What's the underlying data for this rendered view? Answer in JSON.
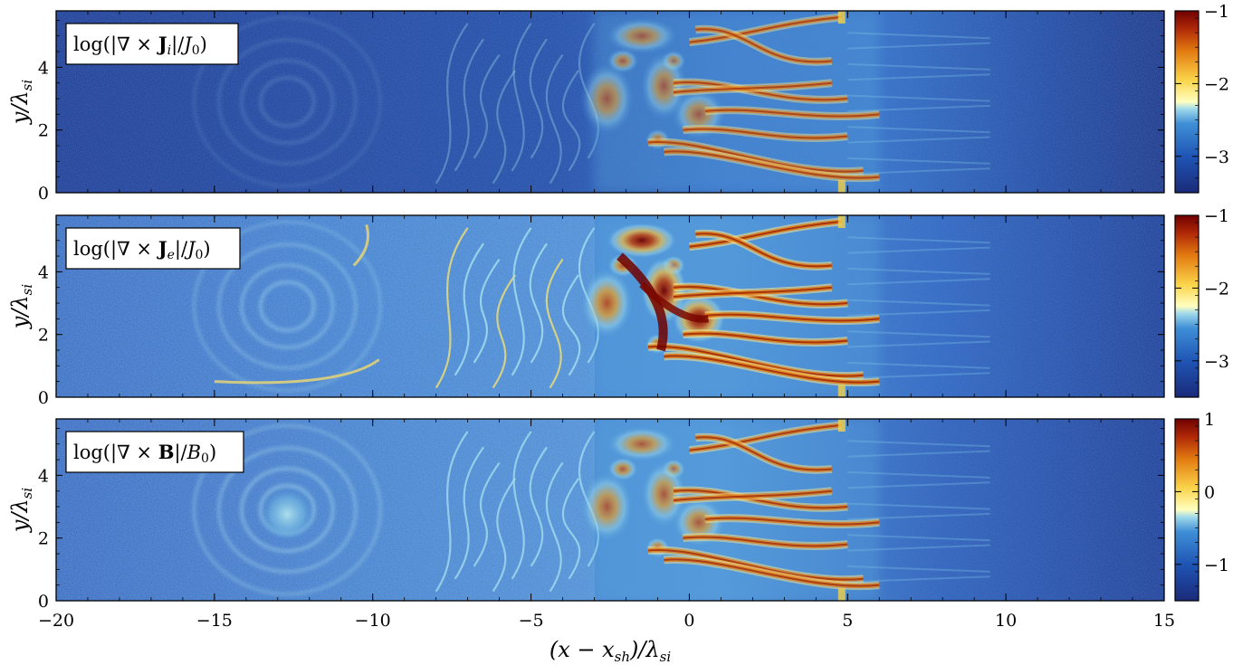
{
  "chart_data": {
    "type": "heatmap",
    "xlabel": "(x − x_sh)/λ_si",
    "ylabel": "y/λ_si",
    "xlim": [
      -20,
      15
    ],
    "ylim": [
      0,
      5.8
    ],
    "x_ticks": [
      -20,
      -15,
      -10,
      -5,
      0,
      5,
      10,
      15
    ],
    "y_ticks": [
      0,
      2,
      4
    ],
    "colormap_stops": [
      "#1a2a78",
      "#1f55b5",
      "#3f8fd6",
      "#9fd9ea",
      "#ffffc0",
      "#fbd44a",
      "#e27a10",
      "#b02a08",
      "#700000"
    ],
    "panels": [
      {
        "label": "log(|∇ × J_i|/J_0)",
        "colorbar_ticks": [
          -3,
          -2,
          -1
        ],
        "colorbar_range": [
          -3.5,
          -1
        ]
      },
      {
        "label": "log(|∇ × J_e|/J_0)",
        "colorbar_ticks": [
          -3,
          -2,
          -1
        ],
        "colorbar_range": [
          -3.5,
          -1
        ]
      },
      {
        "label": "log(|∇ × B|/B_0)",
        "colorbar_ticks": [
          -1,
          0,
          1
        ],
        "colorbar_range": [
          -1.5,
          1
        ]
      }
    ]
  }
}
